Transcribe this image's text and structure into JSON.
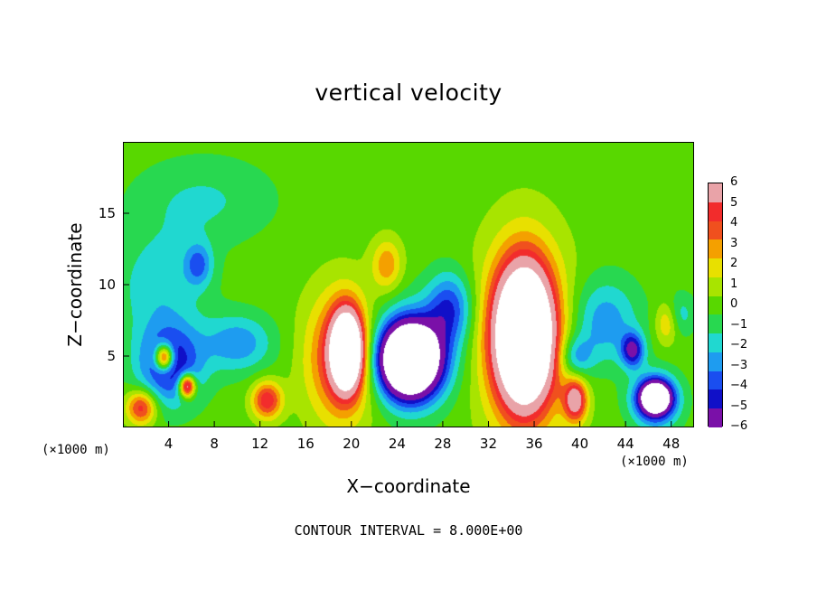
{
  "chart_data": {
    "type": "heatmap",
    "title": "vertical velocity",
    "xlabel": "X−coordinate",
    "ylabel": "Z−coordinate",
    "x_unit": "(×1000 m)",
    "x_unit_right": "(×1000 m)",
    "xlim": [
      0,
      50
    ],
    "ylim": [
      0,
      20
    ],
    "x_ticks": [
      4,
      8,
      12,
      16,
      20,
      24,
      28,
      32,
      36,
      40,
      44,
      48
    ],
    "y_ticks": [
      5,
      10,
      15
    ],
    "colorbar_ticks": [
      6,
      5,
      4,
      3,
      2,
      1,
      0,
      -1,
      -2,
      -3,
      -4,
      -5,
      -6
    ],
    "colorbar_range": [
      -6,
      6
    ],
    "colorbar_colors": [
      "#e9a3a8",
      "#f22c2c",
      "#f0501e",
      "#f4a000",
      "#e8e000",
      "#a8e400",
      "#58d800",
      "#28d850",
      "#20d8d0",
      "#1e9cf0",
      "#1a4ef0",
      "#1010c8",
      "#7a10a8"
    ],
    "contour_interval_text": "CONTOUR INTERVAL = 8.000E+00",
    "background_value": 0,
    "features": [
      {
        "x": 1.5,
        "z": 1.5,
        "value": 5,
        "rx": 1.3,
        "rz": 1.2
      },
      {
        "x": 4.0,
        "z": 4.5,
        "value": -5,
        "rx": 2.8,
        "rz": 2.8
      },
      {
        "x": 3.5,
        "z": 5.0,
        "value": 8,
        "rx": 0.8,
        "rz": 0.9
      },
      {
        "x": 5.5,
        "z": 3.0,
        "value": 8,
        "rx": 0.7,
        "rz": 0.8
      },
      {
        "x": 3.0,
        "z": 10.0,
        "value": -2,
        "rx": 4.0,
        "rz": 4.0
      },
      {
        "x": 6.5,
        "z": 11.5,
        "value": -3,
        "rx": 1.2,
        "rz": 1.5
      },
      {
        "x": 12.5,
        "z": 2.0,
        "value": 5,
        "rx": 1.3,
        "rz": 1.3
      },
      {
        "x": 10.0,
        "z": 6.0,
        "value": -3,
        "rx": 3.0,
        "rz": 2.0
      },
      {
        "x": 19.0,
        "z": 5.0,
        "value": 5,
        "rx": 3.0,
        "rz": 4.5
      },
      {
        "x": 19.5,
        "z": 5.5,
        "value": 12,
        "rx": 1.3,
        "rz": 2.6
      },
      {
        "x": 23.0,
        "z": 11.5,
        "value": 3,
        "rx": 1.3,
        "rz": 1.8
      },
      {
        "x": 25.0,
        "z": 5.0,
        "value": -6,
        "rx": 3.5,
        "rz": 3.2
      },
      {
        "x": 25.0,
        "z": 4.8,
        "value": -12,
        "rx": 2.3,
        "rz": 2.3
      },
      {
        "x": 28.5,
        "z": 8.5,
        "value": -4,
        "rx": 2.0,
        "rz": 2.5
      },
      {
        "x": 35.0,
        "z": 6.5,
        "value": 5,
        "rx": 3.8,
        "rz": 6.5
      },
      {
        "x": 35.0,
        "z": 6.5,
        "value": 13,
        "rx": 2.3,
        "rz": 4.5
      },
      {
        "x": 39.5,
        "z": 2.0,
        "value": 6,
        "rx": 1.0,
        "rz": 1.5
      },
      {
        "x": 39.5,
        "z": 5.0,
        "value": -3,
        "rx": 1.5,
        "rz": 1.5
      },
      {
        "x": 42.0,
        "z": 7.5,
        "value": -3,
        "rx": 3.0,
        "rz": 3.0
      },
      {
        "x": 44.5,
        "z": 5.5,
        "value": -5,
        "rx": 1.0,
        "rz": 1.2
      },
      {
        "x": 46.5,
        "z": 2.0,
        "value": -6,
        "rx": 2.0,
        "rz": 1.8
      },
      {
        "x": 46.5,
        "z": 2.2,
        "value": -9,
        "rx": 1.2,
        "rz": 1.0
      },
      {
        "x": 47.5,
        "z": 7.5,
        "value": 3,
        "rx": 1.0,
        "rz": 1.5
      },
      {
        "x": 48.5,
        "z": 8.0,
        "value": -2,
        "rx": 1.5,
        "rz": 1.5
      },
      {
        "x": 7.0,
        "z": 16.0,
        "value": -1.5,
        "rx": 6.0,
        "rz": 3.0
      }
    ]
  }
}
